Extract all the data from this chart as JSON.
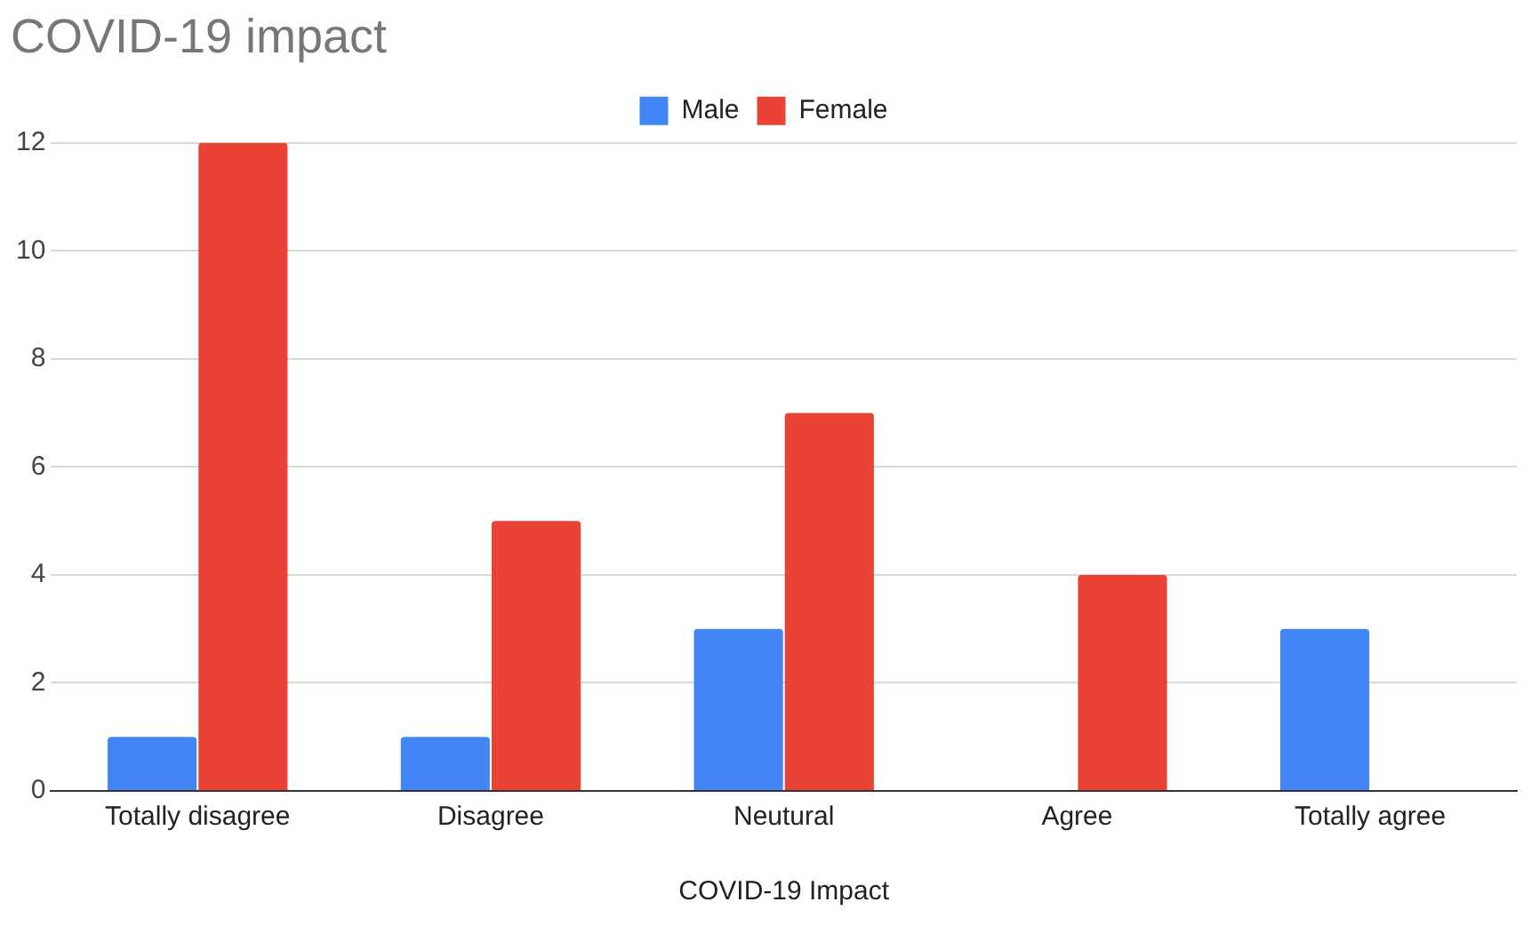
{
  "chart_data": {
    "type": "bar",
    "title": "COVID-19 impact",
    "xlabel": "COVID-19 Impact",
    "categories": [
      "Totally disagree",
      "Disagree",
      "Neutural",
      "Agree",
      "Totally agree"
    ],
    "series": [
      {
        "name": "Male",
        "color": "#4285f4",
        "values": [
          1,
          1,
          3,
          0,
          3
        ]
      },
      {
        "name": "Female",
        "color": "#ea4335",
        "values": [
          12,
          5,
          7,
          4,
          0
        ]
      }
    ],
    "ylim": [
      0,
      12
    ],
    "yticks": [
      0,
      2,
      4,
      6,
      8,
      10,
      12
    ],
    "grid": "y",
    "legend": "top"
  }
}
